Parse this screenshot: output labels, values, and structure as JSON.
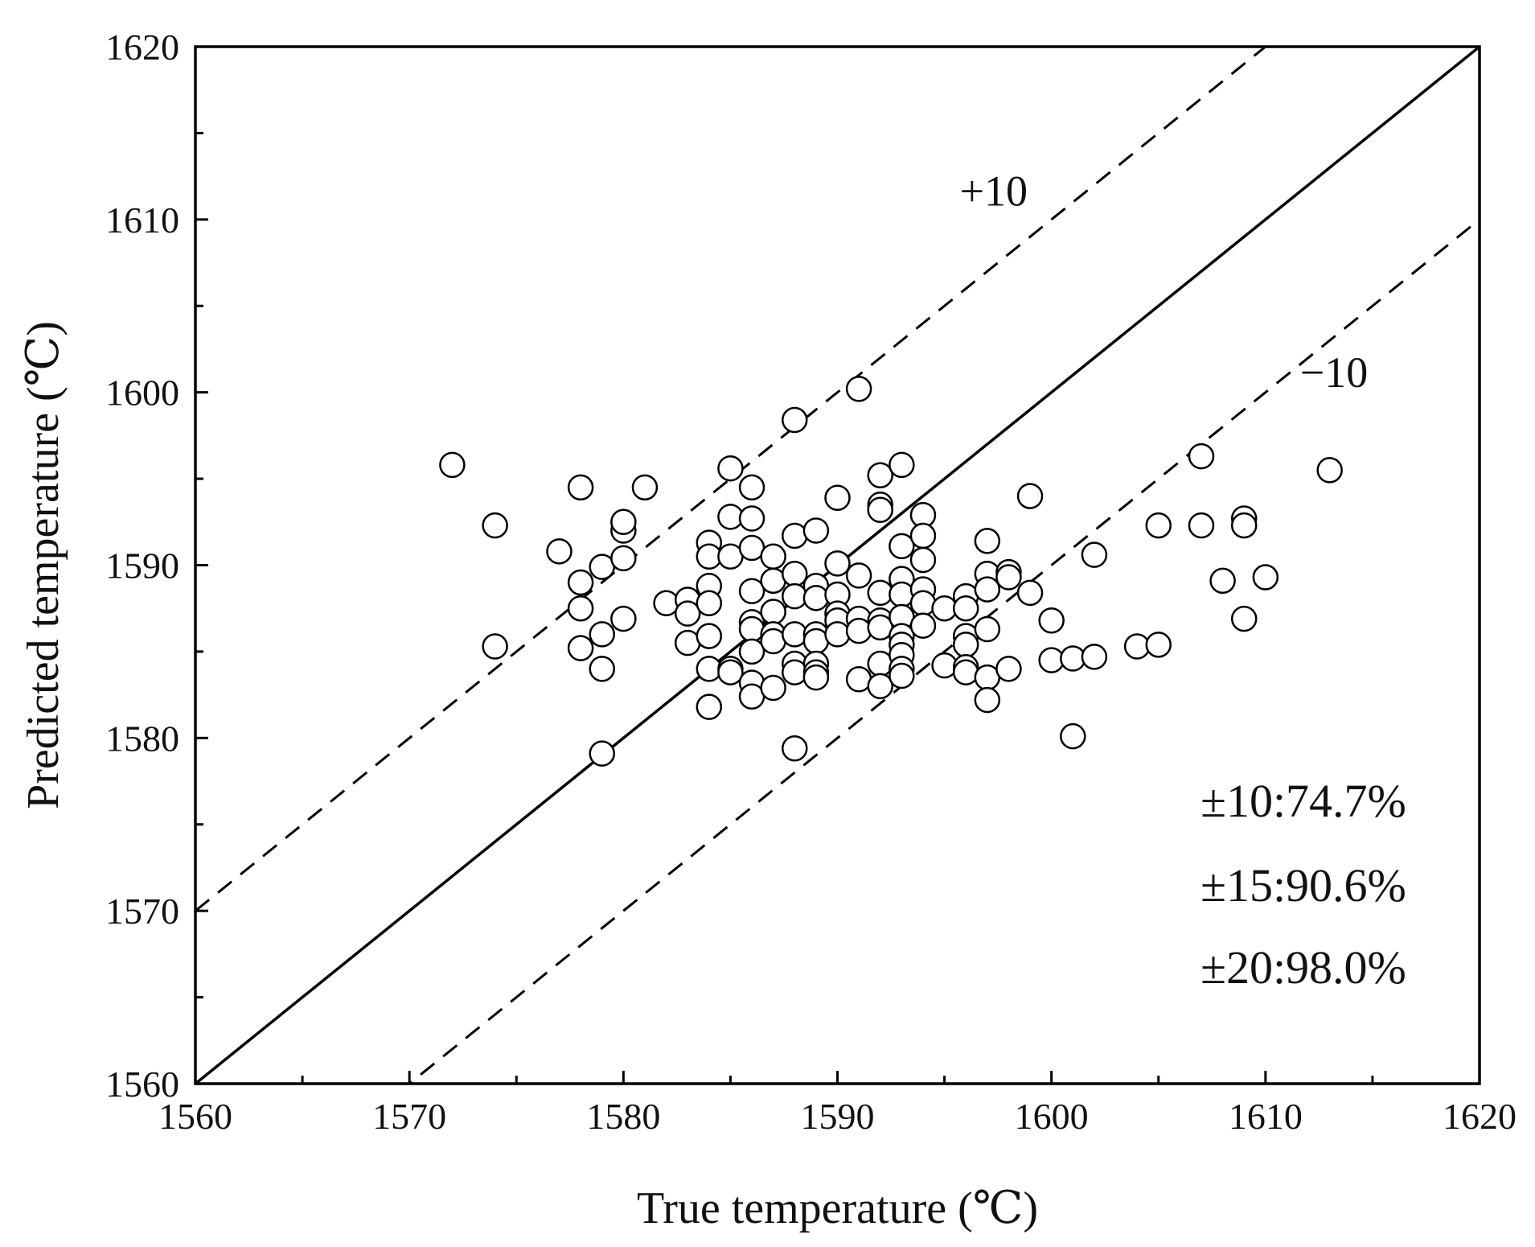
{
  "chart_data": {
    "type": "scatter",
    "title": "",
    "xlabel": "True temperature (℃)",
    "ylabel": "Predicted temperature (℃)",
    "xlim": [
      1560,
      1620
    ],
    "ylim": [
      1560,
      1620
    ],
    "xticks": [
      1560,
      1570,
      1580,
      1590,
      1600,
      1610,
      1620
    ],
    "yticks": [
      1560,
      1570,
      1580,
      1590,
      1600,
      1610,
      1620
    ],
    "minor_tick_step": 5,
    "grid": false,
    "reference_lines": [
      {
        "name": "y = x",
        "offset": 0,
        "style": "solid"
      },
      {
        "name": "+10",
        "offset": 10,
        "style": "dashed"
      },
      {
        "name": "−10",
        "offset": -10,
        "style": "dashed"
      }
    ],
    "line_labels": [
      {
        "text": "+10",
        "x": 1597.3,
        "y": 1610.8
      },
      {
        "text": "−10",
        "x": 1613.2,
        "y": 1600.3
      }
    ],
    "stats": [
      "±10:74.7%",
      "±15:90.6%",
      "±20:98.0%"
    ],
    "series": [
      {
        "name": "samples",
        "marker": "open-circle",
        "points": [
          [
            1572,
            1595.8
          ],
          [
            1574,
            1592.3
          ],
          [
            1574,
            1585.3
          ],
          [
            1577,
            1590.8
          ],
          [
            1578,
            1594.5
          ],
          [
            1578,
            1589.0
          ],
          [
            1578,
            1587.5
          ],
          [
            1578,
            1585.2
          ],
          [
            1579,
            1589.9
          ],
          [
            1579,
            1586.0
          ],
          [
            1579,
            1584.0
          ],
          [
            1579,
            1579.1
          ],
          [
            1580,
            1592.0
          ],
          [
            1580,
            1592.5
          ],
          [
            1580,
            1590.4
          ],
          [
            1580,
            1586.9
          ],
          [
            1581,
            1594.5
          ],
          [
            1582,
            1587.8
          ],
          [
            1583,
            1588.0
          ],
          [
            1583,
            1587.2
          ],
          [
            1583,
            1585.5
          ],
          [
            1584,
            1591.3
          ],
          [
            1584,
            1590.5
          ],
          [
            1584,
            1588.8
          ],
          [
            1584,
            1587.8
          ],
          [
            1584,
            1585.9
          ],
          [
            1584,
            1584.0
          ],
          [
            1584,
            1581.8
          ],
          [
            1585,
            1595.6
          ],
          [
            1585,
            1592.8
          ],
          [
            1585,
            1590.5
          ],
          [
            1585,
            1584.0
          ],
          [
            1585,
            1583.8
          ],
          [
            1586,
            1594.5
          ],
          [
            1586,
            1592.7
          ],
          [
            1586,
            1591.0
          ],
          [
            1586,
            1588.5
          ],
          [
            1586,
            1586.7
          ],
          [
            1586,
            1586.3
          ],
          [
            1586,
            1585.0
          ],
          [
            1586,
            1583.2
          ],
          [
            1586,
            1582.4
          ],
          [
            1587,
            1590.5
          ],
          [
            1587,
            1589.1
          ],
          [
            1587,
            1587.3
          ],
          [
            1587,
            1586.0
          ],
          [
            1587,
            1585.6
          ],
          [
            1587,
            1582.9
          ],
          [
            1588,
            1598.4
          ],
          [
            1588,
            1591.7
          ],
          [
            1588,
            1589.5
          ],
          [
            1588,
            1588.2
          ],
          [
            1588,
            1586.0
          ],
          [
            1588,
            1584.3
          ],
          [
            1588,
            1583.8
          ],
          [
            1588,
            1579.4
          ],
          [
            1589,
            1592.0
          ],
          [
            1589,
            1588.8
          ],
          [
            1589,
            1588.1
          ],
          [
            1589,
            1586.0
          ],
          [
            1589,
            1585.6
          ],
          [
            1589,
            1584.3
          ],
          [
            1589,
            1583.8
          ],
          [
            1589,
            1583.5
          ],
          [
            1590,
            1593.9
          ],
          [
            1590,
            1590.1
          ],
          [
            1590,
            1588.3
          ],
          [
            1590,
            1587.2
          ],
          [
            1590,
            1586.8
          ],
          [
            1590,
            1586.0
          ],
          [
            1591,
            1600.2
          ],
          [
            1591,
            1589.4
          ],
          [
            1591,
            1586.9
          ],
          [
            1591,
            1586.2
          ],
          [
            1591,
            1583.4
          ],
          [
            1592,
            1595.2
          ],
          [
            1592,
            1593.5
          ],
          [
            1592,
            1593.2
          ],
          [
            1592,
            1588.4
          ],
          [
            1592,
            1586.8
          ],
          [
            1592,
            1586.4
          ],
          [
            1592,
            1584.3
          ],
          [
            1592,
            1583.0
          ],
          [
            1593,
            1595.8
          ],
          [
            1593,
            1591.1
          ],
          [
            1593,
            1589.2
          ],
          [
            1593,
            1588.3
          ],
          [
            1593,
            1587.0
          ],
          [
            1593,
            1585.9
          ],
          [
            1593,
            1585.4
          ],
          [
            1593,
            1584.8
          ],
          [
            1593,
            1584.0
          ],
          [
            1593,
            1583.6
          ],
          [
            1594,
            1592.9
          ],
          [
            1594,
            1591.7
          ],
          [
            1594,
            1590.3
          ],
          [
            1594,
            1588.6
          ],
          [
            1594,
            1587.8
          ],
          [
            1594,
            1586.5
          ],
          [
            1595,
            1587.5
          ],
          [
            1595,
            1584.2
          ],
          [
            1596,
            1588.2
          ],
          [
            1596,
            1587.5
          ],
          [
            1596,
            1585.9
          ],
          [
            1596,
            1585.4
          ],
          [
            1596,
            1584.1
          ],
          [
            1596,
            1583.8
          ],
          [
            1597,
            1591.4
          ],
          [
            1597,
            1589.5
          ],
          [
            1597,
            1588.6
          ],
          [
            1597,
            1586.3
          ],
          [
            1597,
            1583.5
          ],
          [
            1597,
            1582.2
          ],
          [
            1598,
            1589.6
          ],
          [
            1598,
            1589.3
          ],
          [
            1598,
            1584.0
          ],
          [
            1599,
            1594.0
          ],
          [
            1599,
            1588.4
          ],
          [
            1600,
            1586.8
          ],
          [
            1600,
            1584.5
          ],
          [
            1601,
            1584.6
          ],
          [
            1601,
            1580.1
          ],
          [
            1602,
            1590.6
          ],
          [
            1602,
            1584.7
          ],
          [
            1604,
            1585.3
          ],
          [
            1605,
            1592.3
          ],
          [
            1605,
            1585.4
          ],
          [
            1607,
            1596.3
          ],
          [
            1607,
            1592.3
          ],
          [
            1608,
            1589.1
          ],
          [
            1609,
            1592.7
          ],
          [
            1609,
            1592.3
          ],
          [
            1609,
            1586.9
          ],
          [
            1610,
            1589.3
          ],
          [
            1613,
            1595.5
          ]
        ]
      }
    ]
  }
}
